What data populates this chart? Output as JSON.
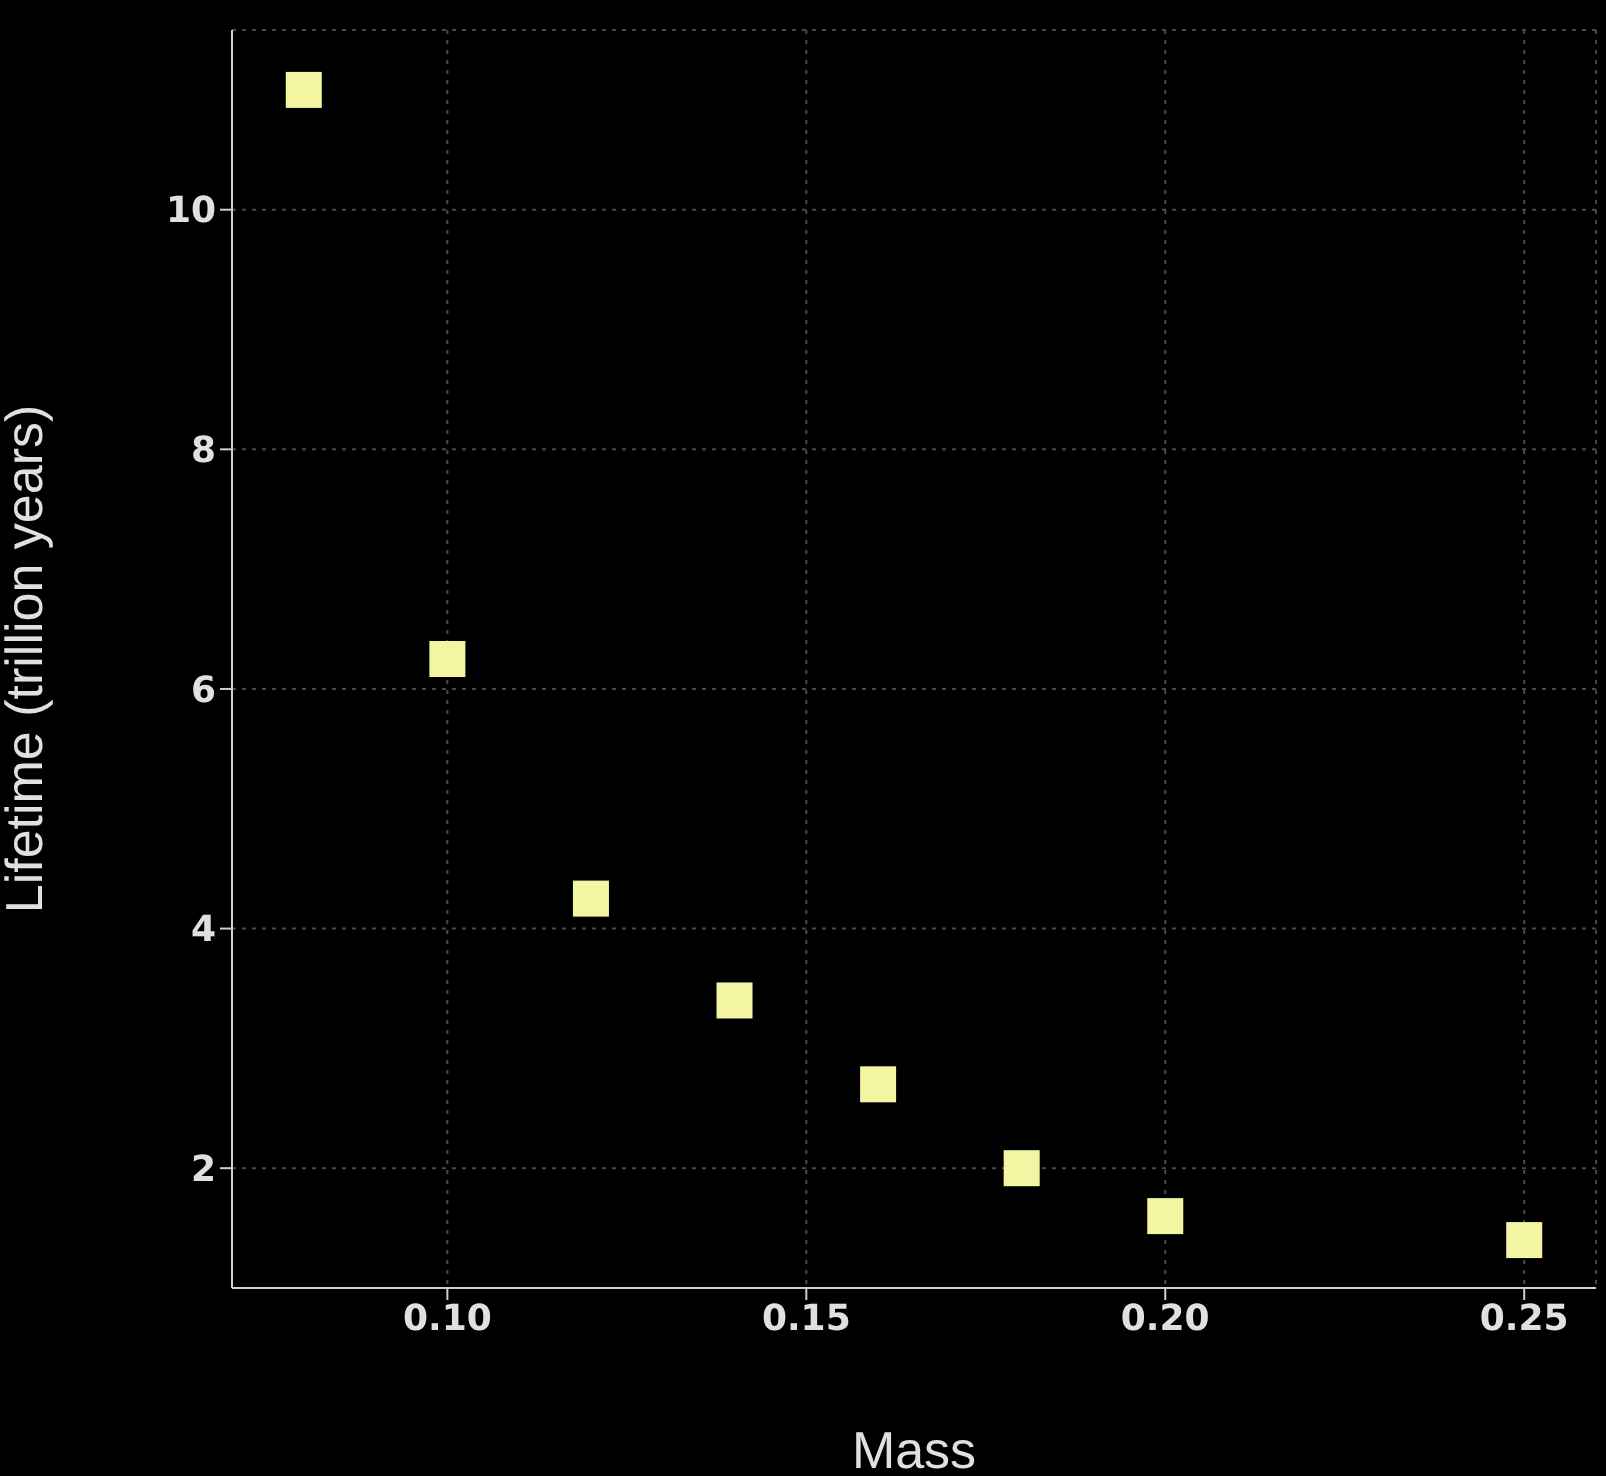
{
  "chart_data": {
    "type": "scatter",
    "xlabel": "Mass",
    "ylabel": "Lifetime (trillion years)",
    "x": [
      0.08,
      0.1,
      0.12,
      0.14,
      0.16,
      0.18,
      0.2,
      0.25
    ],
    "values": [
      11,
      6.25,
      4.25,
      3.4,
      2.7,
      2.0,
      1.6,
      1.4
    ],
    "color": "#f3f5a3",
    "marker": "square",
    "xlim": [
      0.07,
      0.26
    ],
    "xticks": [
      {
        "value": 0.1,
        "label": "0.10"
      },
      {
        "value": 0.15,
        "label": "0.15"
      },
      {
        "value": 0.2,
        "label": "0.20"
      },
      {
        "value": 0.25,
        "label": "0.25"
      }
    ],
    "ylim": [
      1,
      11.5
    ],
    "yticks": [
      2,
      4,
      6,
      8,
      10
    ],
    "grid": true
  }
}
